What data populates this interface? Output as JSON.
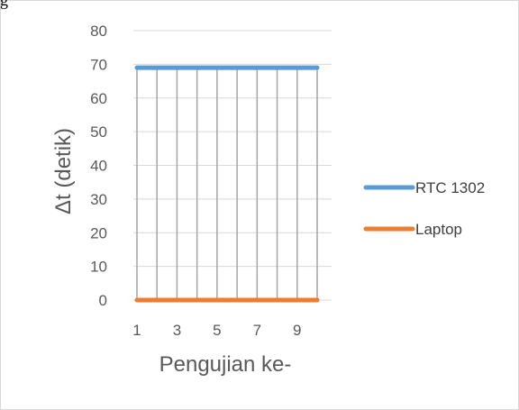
{
  "header": {
    "partial_text": "g"
  },
  "chart_data": {
    "type": "line",
    "x": [
      1,
      2,
      3,
      4,
      5,
      6,
      7,
      8,
      9,
      10
    ],
    "x_tick_labels": [
      "1",
      "3",
      "5",
      "7",
      "9"
    ],
    "ylim": [
      0,
      80
    ],
    "y_ticks": [
      0,
      10,
      20,
      30,
      40,
      50,
      60,
      70,
      80
    ],
    "ylabel": "Δt (detik)",
    "xlabel": "Pengujian ke-",
    "grid": true,
    "legend_position": "right",
    "series": [
      {
        "name": "RTC 1302",
        "color": "#5b9bd5",
        "values": [
          69,
          69,
          69,
          69,
          69,
          69,
          69,
          69,
          69,
          69
        ]
      },
      {
        "name": "Laptop",
        "color": "#ed7d31",
        "values": [
          0,
          0,
          0,
          0,
          0,
          0,
          0,
          0,
          0,
          0
        ]
      }
    ]
  }
}
